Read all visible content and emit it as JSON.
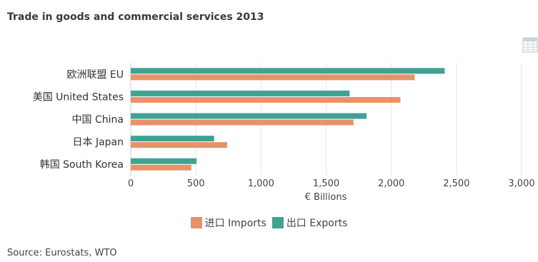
{
  "title": "Trade in goods and commercial services 2013",
  "source": "Source: Eurostats, WTO",
  "icons": {
    "table": "table-icon"
  },
  "colors": {
    "imports": "#e8916a",
    "exports": "#3fa292",
    "grid": "#e6e6e6",
    "text": "#444444"
  },
  "chart_data": {
    "type": "bar",
    "orientation": "horizontal",
    "categories": [
      "欧洲联盟 EU",
      "美国 United States",
      "中国 China",
      "日本 Japan",
      "韩国 South Korea"
    ],
    "series": [
      {
        "name": "出口 Exports",
        "values": [
          2410,
          1680,
          1810,
          640,
          505
        ]
      },
      {
        "name": "进口 Imports",
        "values": [
          2180,
          2070,
          1710,
          740,
          465
        ]
      }
    ],
    "xlabel": "€ Billions",
    "ylabel": "",
    "xlim": [
      0,
      3000
    ],
    "ticks": [
      "0",
      "500",
      "1,000",
      "1,500",
      "2,000",
      "2,500",
      "3,000"
    ],
    "grid": true,
    "legend_position": "bottom-center",
    "legend_order": [
      "进口 Imports",
      "出口 Exports"
    ]
  }
}
